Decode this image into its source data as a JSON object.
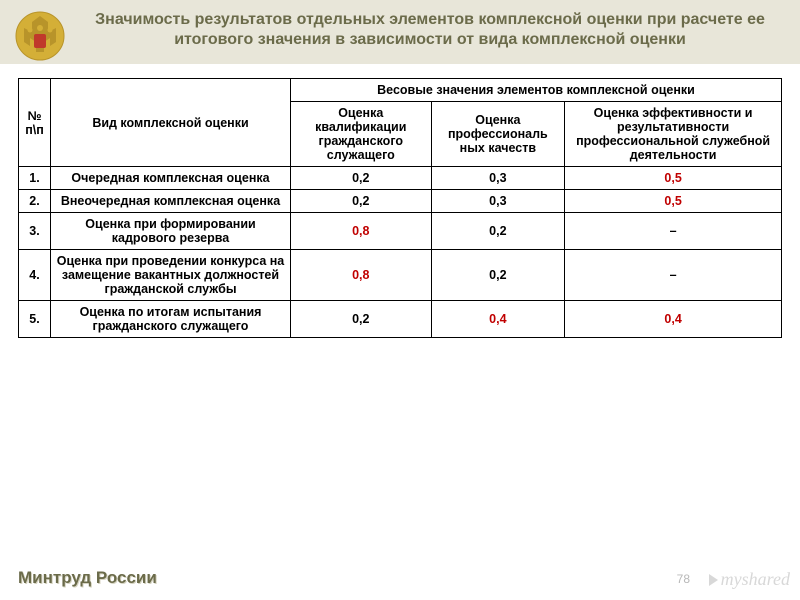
{
  "header": {
    "title": "Значимость результатов отдельных элементов комплексной оценки при расчете ее итогового значения в зависимости от вида комплексной оценки",
    "title_color": "#6b6b4a",
    "band_color": "#e8e6d9"
  },
  "table": {
    "columns": {
      "num": "№ п\\п",
      "type": "Вид комплексной оценки",
      "group": "Весовые значения элементов комплексной оценки",
      "c1": "Оценка квалификации гражданского служащего",
      "c2": "Оценка профессиональ ных качеств",
      "c3": "Оценка эффективности и результативности профессиональной служебной деятельности"
    },
    "rows": [
      {
        "n": "1.",
        "type": "Очередная комплексная оценка",
        "v1": "0,2",
        "v2": "0,3",
        "v3": "0,5",
        "hl": [
          false,
          false,
          true
        ]
      },
      {
        "n": "2.",
        "type": "Внеочередная комплексная оценка",
        "v1": "0,2",
        "v2": "0,3",
        "v3": "0,5",
        "hl": [
          false,
          false,
          true
        ]
      },
      {
        "n": "3.",
        "type": "Оценка при формировании кадрового резерва",
        "v1": "0,8",
        "v2": "0,2",
        "v3": "–",
        "hl": [
          true,
          false,
          false
        ]
      },
      {
        "n": "4.",
        "type": "Оценка при проведении конкурса на замещение вакантных должностей гражданской службы",
        "v1": "0,8",
        "v2": "0,2",
        "v3": "–",
        "hl": [
          true,
          false,
          false
        ]
      },
      {
        "n": "5.",
        "type": "Оценка по итогам испытания гражданского служащего",
        "v1": "0,2",
        "v2": "0,4",
        "v3": "0,4",
        "hl": [
          false,
          true,
          true
        ]
      }
    ],
    "highlight_color": "#c00000"
  },
  "footer": {
    "text": "Минтруд России"
  },
  "page_number": "78",
  "watermark": "myshared"
}
